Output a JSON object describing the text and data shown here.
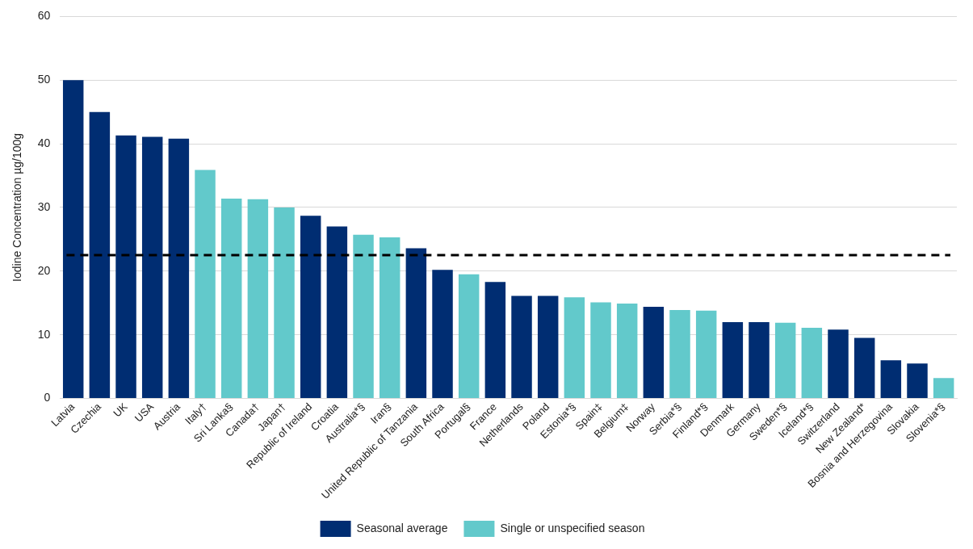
{
  "chart_data": {
    "type": "bar",
    "ylabel": "Iodine Concentration µg/100g",
    "categories": [
      "Latvia",
      "Czechia",
      "UK",
      "USA",
      "Austria",
      "Italy†",
      "Sri Lanka§",
      "Canada†",
      "Japan†",
      "Republic of Ireland",
      "Croatia",
      "Australia*§",
      "Iran§",
      "United Republic of Tanzania",
      "South Africa",
      "Portugal§",
      "France",
      "Netherlands",
      "Poland",
      "Estonia*§",
      "Spain‡",
      "Belgium‡",
      "Norway",
      "Serbia*§",
      "Finland*§",
      "Denmark",
      "Germany",
      "Sweden*§",
      "Iceland*§",
      "Switzerland",
      "New Zealand*",
      "Bosnia and Herzegovina",
      "Slovakia",
      "Slovenia*§"
    ],
    "series": [
      {
        "name": "Seasonal average",
        "color": "#002d72",
        "values": [
          50,
          45,
          41.3,
          41.1,
          40.8,
          null,
          null,
          null,
          null,
          28.7,
          27.0,
          null,
          null,
          23.6,
          20.2,
          null,
          18.3,
          16.1,
          16.1,
          null,
          null,
          null,
          14.4,
          null,
          null,
          12.0,
          12.0,
          null,
          null,
          10.8,
          9.5,
          6.0,
          5.5,
          null
        ]
      },
      {
        "name": "Single or unspecified season",
        "color": "#62c9cb",
        "values": [
          null,
          null,
          null,
          null,
          null,
          35.9,
          31.4,
          31.3,
          30.0,
          null,
          null,
          25.7,
          25.3,
          null,
          null,
          19.5,
          null,
          null,
          null,
          15.9,
          15.1,
          14.9,
          null,
          13.9,
          13.8,
          null,
          null,
          11.9,
          11.1,
          null,
          null,
          null,
          null,
          3.2
        ]
      }
    ],
    "ylim": [
      0,
      60
    ],
    "yticks": [
      0,
      10,
      20,
      30,
      40,
      50,
      60
    ],
    "grid": "y",
    "legend": "bottom",
    "ref_lines": [
      {
        "axis": "y",
        "value": 22.5,
        "color": "#000000",
        "line_style": "dashed"
      }
    ]
  }
}
